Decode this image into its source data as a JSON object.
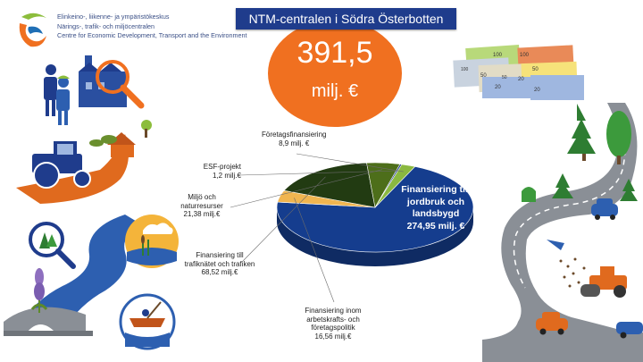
{
  "org": {
    "lines": [
      "Elinkeino-, liikenne- ja ympäristökeskus",
      "Närings-, trafik- och miljöcentralen",
      "Centre for Economic Development, Transport and the Environment"
    ]
  },
  "header": {
    "title": "NTM-centralen i Södra Österbotten"
  },
  "total": {
    "value": "391,5",
    "unit": "milj. €"
  },
  "banknotes": [
    "100",
    "50",
    "20",
    "100",
    "50",
    "20",
    "100",
    "50",
    "20"
  ],
  "colors": {
    "brand_blue": "#1f3c8c",
    "orange": "#f07020",
    "agriculture": "#153d8e",
    "transport": "#223b12",
    "environment": "#4d6e1a",
    "esf": "#1f3c8c",
    "business_financing": "#8ab840",
    "business_policy": "#f0b550"
  },
  "chart_data": {
    "type": "pie",
    "unit": "milj. €",
    "slices": [
      {
        "key": "agriculture",
        "label_lines": [
          "Finansiering till",
          "jordbruk och",
          "landsbygd"
        ],
        "value": 274.95,
        "value_text": "274,95 milj. €",
        "color": "#153d8e"
      },
      {
        "key": "business_policy",
        "label_lines": [
          "Finansiering inom",
          "arbetskrafts- och",
          "företagspolitik"
        ],
        "value": 16.56,
        "value_text": "16,56 milj.€",
        "color": "#f0b550"
      },
      {
        "key": "transport",
        "label_lines": [
          "Finansiering till",
          "trafiknätet och trafiken"
        ],
        "value": 68.52,
        "value_text": "68,52 milj.€",
        "color": "#223b12"
      },
      {
        "key": "environment",
        "label_lines": [
          "Miljö och",
          "naturresurser"
        ],
        "value": 21.38,
        "value_text": "21,38 milj.€",
        "color": "#4d6e1a"
      },
      {
        "key": "esf",
        "label_lines": [
          "ESF-projekt"
        ],
        "value": 1.2,
        "value_text": "1,2 milj.€",
        "color": "#1f3c8c"
      },
      {
        "key": "business_financing",
        "label_lines": [
          "Företagsfinansiering"
        ],
        "value": 8.9,
        "value_text": "8,9 milj. €",
        "color": "#8ab840"
      }
    ]
  }
}
